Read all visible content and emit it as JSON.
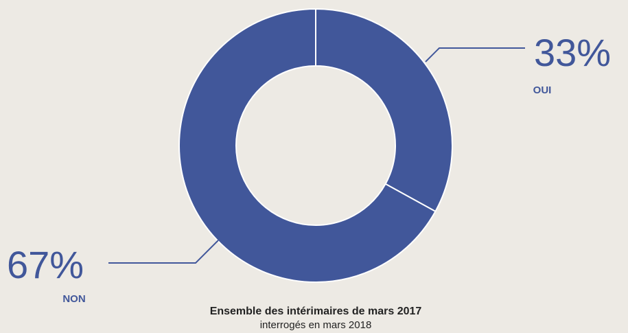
{
  "chart_data": {
    "type": "donut",
    "title": "Ensemble des intérimaires de mars 2017",
    "subtitle": "interrogés en mars 2018",
    "categories": [
      "OUI",
      "NON"
    ],
    "values": [
      33,
      67
    ],
    "value_labels": [
      "33%",
      "67%"
    ],
    "color": "#41579a"
  }
}
